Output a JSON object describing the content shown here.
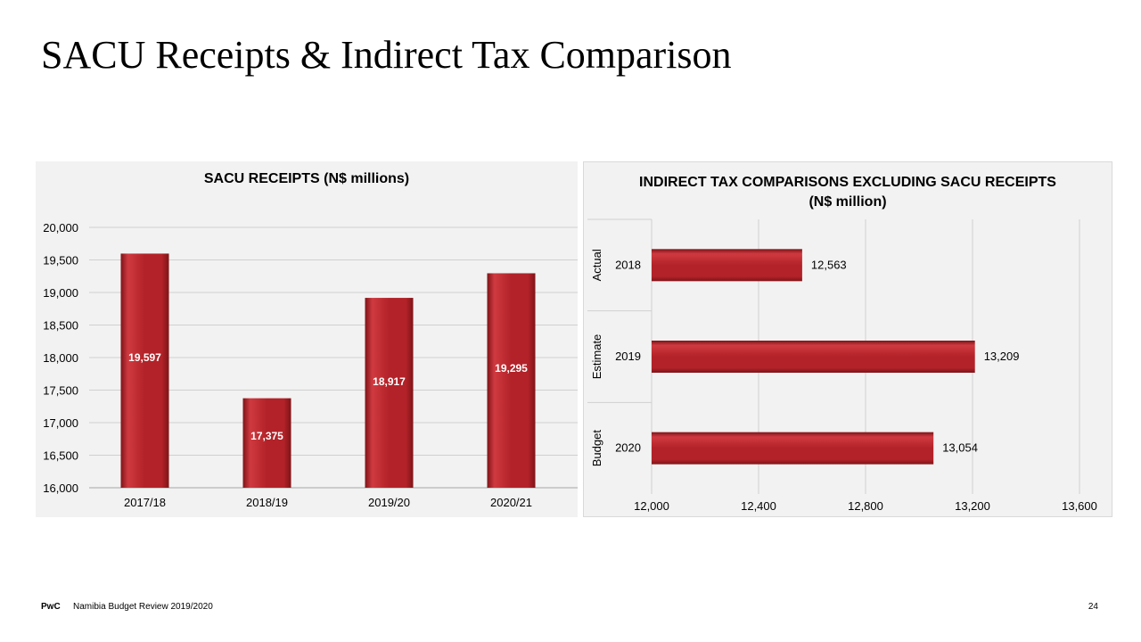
{
  "slide": {
    "title": "SACU Receipts & Indirect Tax Comparison",
    "footer_logo": "PwC",
    "footer_text": "Namibia Budget Review 2019/2020",
    "page_number": "24"
  },
  "colors": {
    "bar": "#b22228",
    "bar_highlight": "#cf3a40",
    "bar_shadow": "#7f1418",
    "panel_background": "#f2f2f2",
    "gridline": "#d0d0d0"
  },
  "chart_data": [
    {
      "type": "bar",
      "title": "SACU RECEIPTS (N$ millions)",
      "categories": [
        "2017/18",
        "2018/19",
        "2019/20",
        "2020/21"
      ],
      "values": [
        19597,
        17375,
        18917,
        19295
      ],
      "data_labels": [
        "19,597",
        "17,375",
        "18,917",
        "19,295"
      ],
      "ylim": [
        16000,
        20000
      ],
      "yticks": [
        16000,
        16500,
        17000,
        17500,
        18000,
        18500,
        19000,
        19500,
        20000
      ],
      "ytick_labels": [
        "16,000",
        "16,500",
        "17,000",
        "17,500",
        "18,000",
        "18,500",
        "19,000",
        "19,500",
        "20,000"
      ],
      "xlabel": "",
      "ylabel": "",
      "grid": true,
      "legend": "none"
    },
    {
      "type": "bar",
      "orientation": "horizontal",
      "title": "INDIRECT TAX COMPARISONS EXCLUDING SACU RECEIPTS (N$ million)",
      "groups": [
        "Actual",
        "Estimate",
        "Budget"
      ],
      "categories": [
        "2018",
        "2019",
        "2020"
      ],
      "values": [
        12563,
        13209,
        13054
      ],
      "data_labels": [
        "12,563",
        "13,209",
        "13,054"
      ],
      "xlim": [
        12000,
        13600
      ],
      "xticks": [
        12000,
        12400,
        12800,
        13200,
        13600
      ],
      "xtick_labels": [
        "12,000",
        "12,400",
        "12,800",
        "13,200",
        "13,600"
      ],
      "xlabel": "",
      "ylabel": "",
      "grid": true,
      "legend": "none"
    }
  ]
}
